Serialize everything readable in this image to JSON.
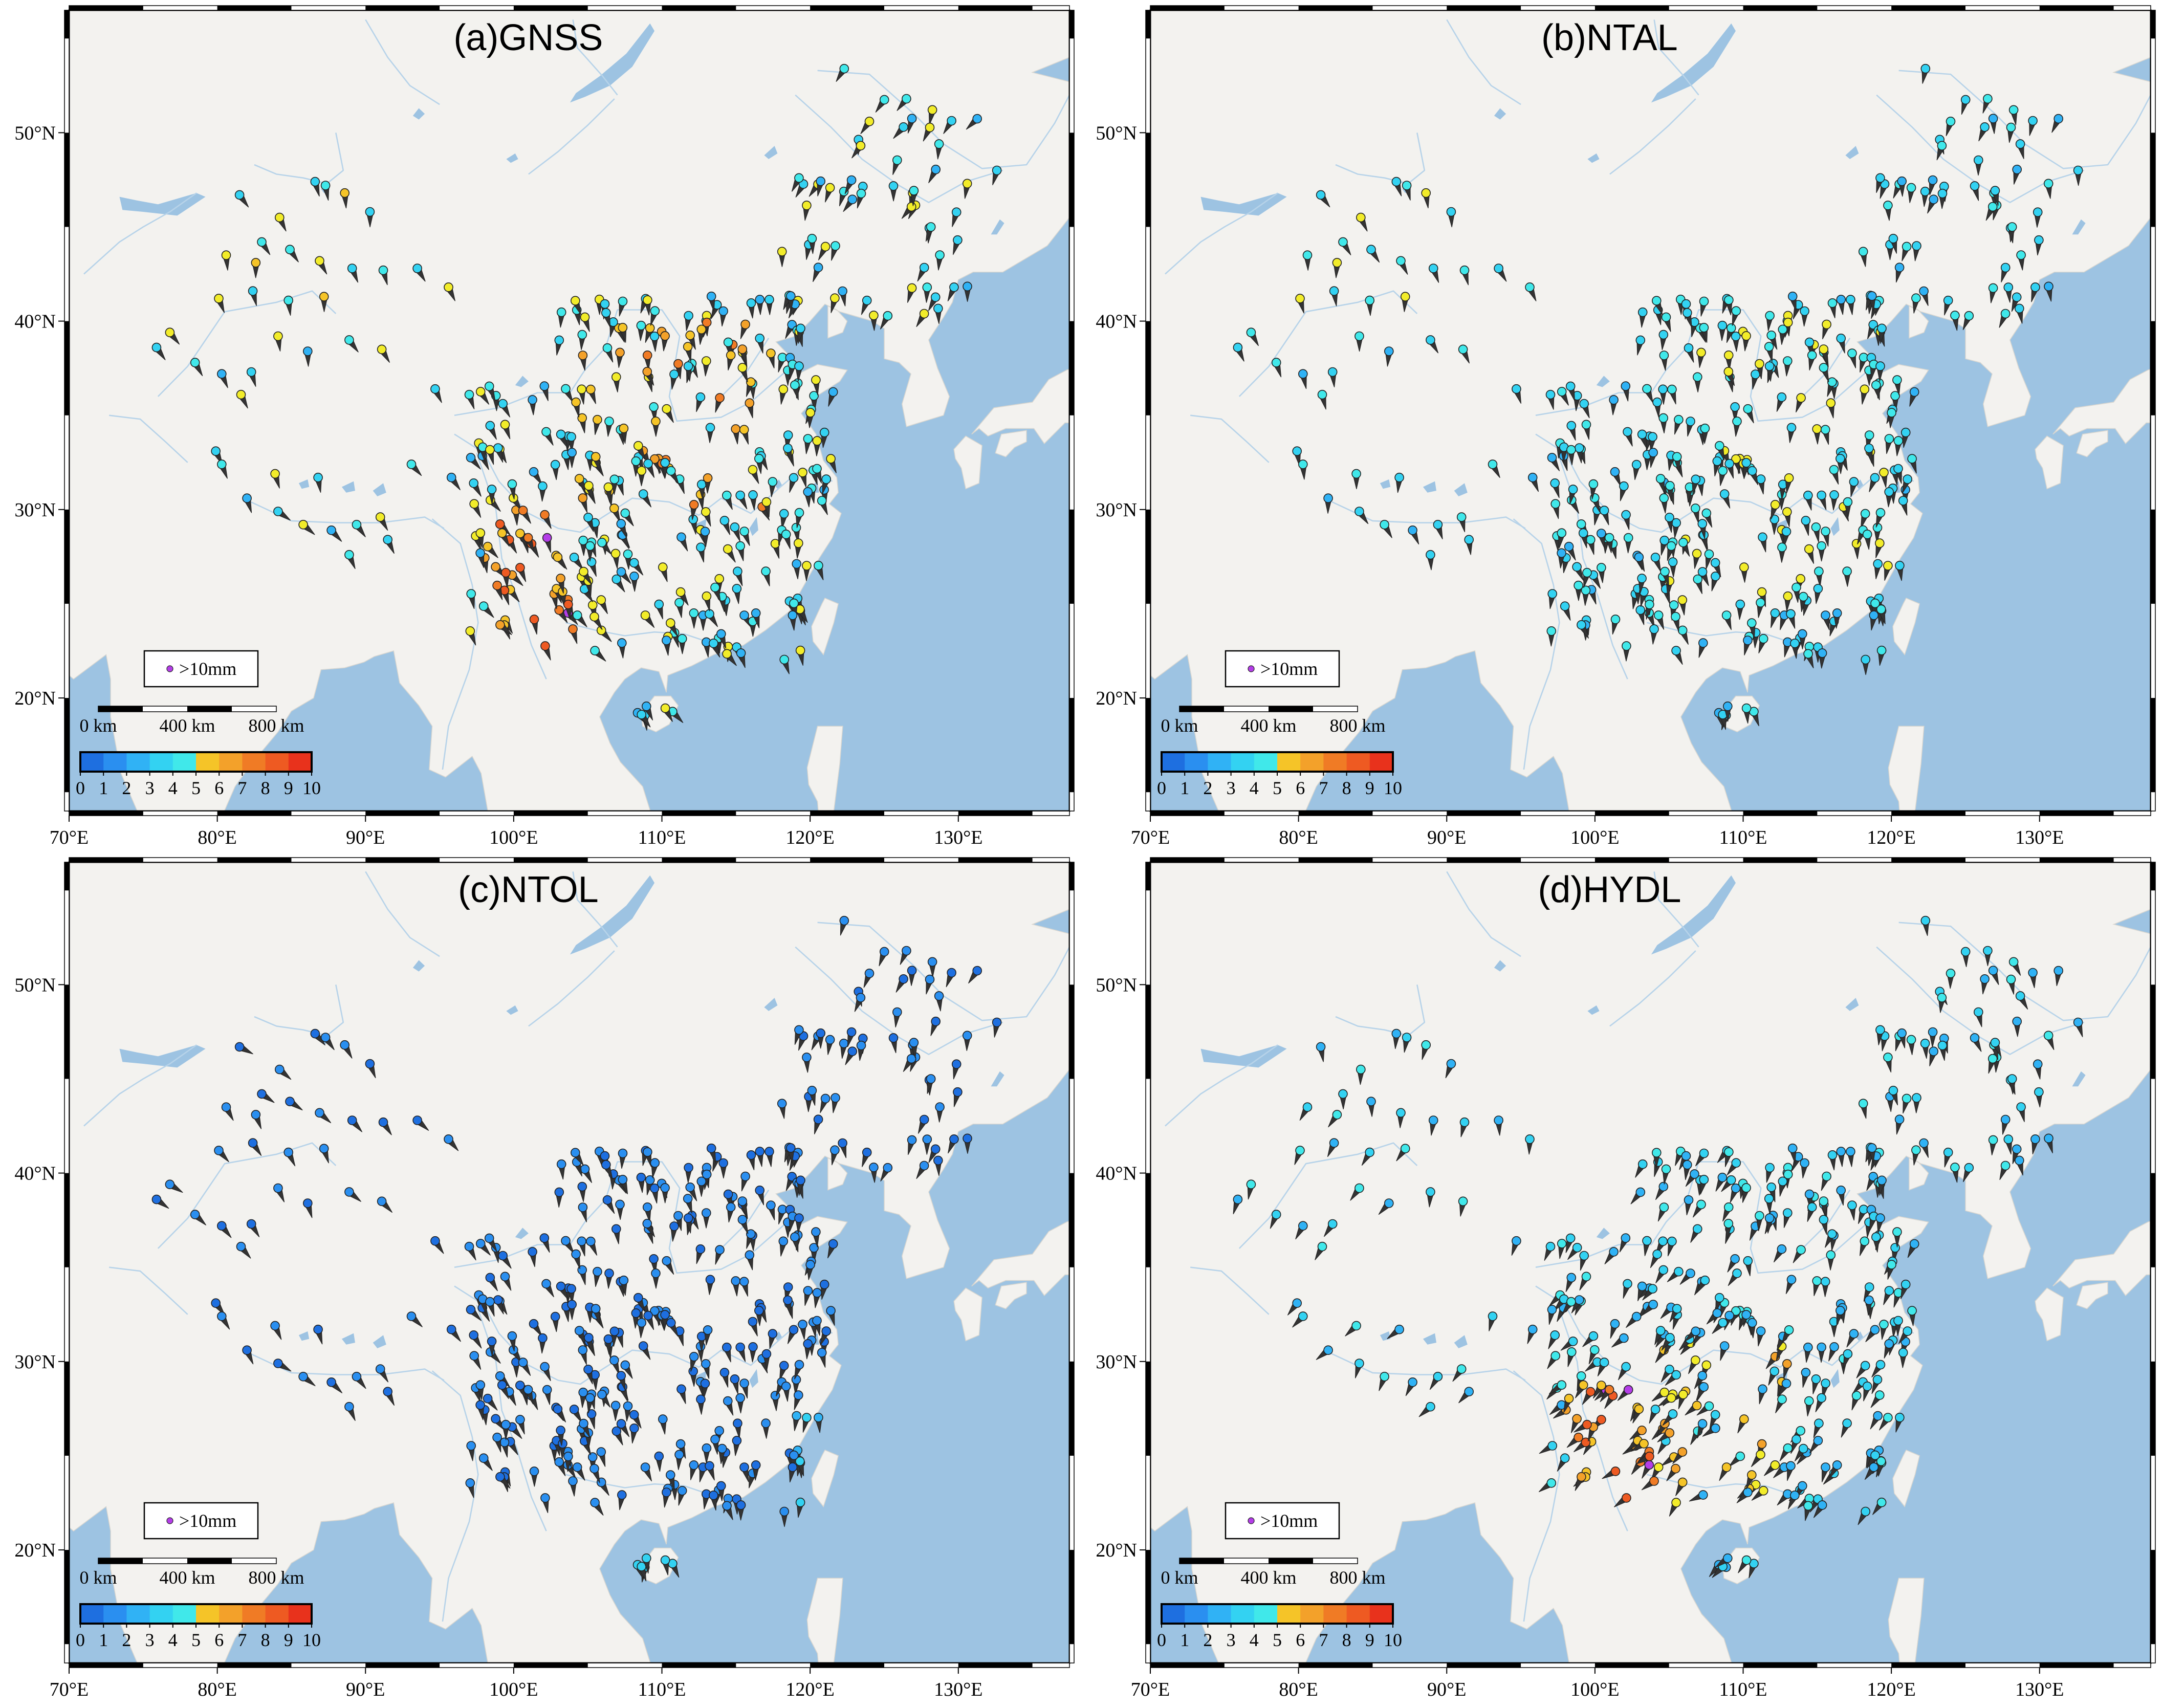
{
  "figure": {
    "panels": [
      {
        "id": "gnss",
        "title": "(a)GNSS",
        "scheme": "gnss"
      },
      {
        "id": "ntal",
        "title": "(b)NTAL",
        "scheme": "ntal"
      },
      {
        "id": "ntol",
        "title": "(c)NTOL",
        "scheme": "ntol"
      },
      {
        "id": "hydl",
        "title": "(d)HYDL",
        "scheme": "hydl"
      }
    ],
    "lon_ticks": [
      "70°E",
      "80°E",
      "90°E",
      "100°E",
      "110°E",
      "120°E",
      "130°E"
    ],
    "lat_ticks": [
      "20°N",
      "30°N",
      "40°N",
      "50°N"
    ],
    "extent": {
      "lon": [
        70,
        137.5
      ],
      "lat": [
        14,
        56.5
      ]
    },
    "scale_bar": {
      "labels": [
        "0 km",
        "400 km",
        "800 km"
      ]
    },
    "colorbar": {
      "labels": [
        "0",
        "1",
        "2",
        "3",
        "4",
        "5",
        "6",
        "7",
        "8",
        "9",
        "10"
      ],
      "colors": [
        "#1e6fe0",
        "#2a8ff0",
        "#30b2f5",
        "#33d2f2",
        "#40e8ea",
        "#f2ec2a",
        "#f5c428",
        "#f3a12a",
        "#f07b25",
        "#ee5a22",
        "#e8321c"
      ]
    },
    "legend": {
      "label": ">10mm",
      "color": "#b43de8"
    },
    "colors": {
      "ocean": "#9dc3e2",
      "land": "#f3f2ef",
      "river": "#b7d3e9"
    }
  }
}
